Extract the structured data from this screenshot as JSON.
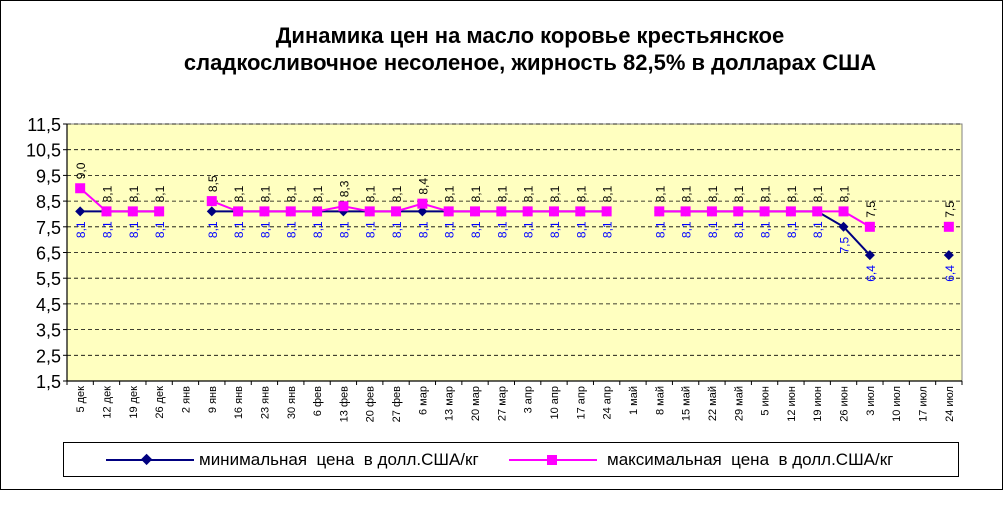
{
  "chart_data": {
    "type": "line",
    "title": [
      "Динамика цен на масло коровье крестьянское",
      "сладкосливочное несоленое, жирность 82,5%  в долларах США"
    ],
    "categories": [
      "5 дек",
      "12 дек",
      "19 дек",
      "26 дек",
      "2 янв",
      "9 янв",
      "16 янв",
      "23 янв",
      "30 янв",
      "6 фев",
      "13 фев",
      "20 фев",
      "27 фев",
      "6 мар",
      "13 мар",
      "20 мар",
      "27 мар",
      "3 апр",
      "10 апр",
      "17 апр",
      "24 апр",
      "1 май",
      "8 май",
      "15 май",
      "22 май",
      "29 май",
      "5 июн",
      "12 июн",
      "19 июн",
      "26 июн",
      "3 июл",
      "10 июл",
      "17 июл",
      "24 июл"
    ],
    "yticks": [
      "1,5",
      "2,5",
      "3,5",
      "4,5",
      "5,5",
      "6,5",
      "7,5",
      "8,5",
      "9,5",
      "10,5",
      "11,5"
    ],
    "ylim": [
      1.5,
      11.5
    ],
    "grid": "horizontal dashed",
    "legend_position": "bottom",
    "plot_background": "#ffffc0",
    "series": [
      {
        "name": "минимальная  цена  в долл.США/кг",
        "color": "#000080",
        "marker": "diamond",
        "values": [
          8.1,
          8.1,
          8.1,
          8.1,
          null,
          8.1,
          8.1,
          8.1,
          8.1,
          8.1,
          8.1,
          8.1,
          8.1,
          8.1,
          8.1,
          8.1,
          8.1,
          8.1,
          8.1,
          8.1,
          8.1,
          null,
          8.1,
          8.1,
          8.1,
          8.1,
          8.1,
          8.1,
          8.1,
          7.5,
          6.4,
          null,
          null,
          6.4
        ],
        "labels": [
          "8,1",
          "8,1",
          "8,1",
          "8,1",
          null,
          "8,1",
          "8,1",
          "8,1",
          "8,1",
          "8,1",
          "8,1",
          "8,1",
          "8,1",
          "8,1",
          "8,1",
          "8,1",
          "8,1",
          "8,1",
          "8,1",
          "8,1",
          "8,1",
          null,
          "8,1",
          "8,1",
          "8,1",
          "8,1",
          "8,1",
          "8,1",
          "8,1",
          "7,5",
          "6,4",
          null,
          null,
          "6,4"
        ],
        "label_color": "#0000ff"
      },
      {
        "name": "максимальная  цена  в долл.США/кг",
        "color": "#ff00ff",
        "marker": "square",
        "values": [
          9.0,
          8.1,
          8.1,
          8.1,
          null,
          8.5,
          8.1,
          8.1,
          8.1,
          8.1,
          8.3,
          8.1,
          8.1,
          8.4,
          8.1,
          8.1,
          8.1,
          8.1,
          8.1,
          8.1,
          8.1,
          null,
          8.1,
          8.1,
          8.1,
          8.1,
          8.1,
          8.1,
          8.1,
          8.1,
          7.5,
          null,
          null,
          7.5
        ],
        "labels": [
          "9,0",
          "8,1",
          "8,1",
          "8,1",
          null,
          "8,5",
          "8,1",
          "8,1",
          "8,1",
          "8,1",
          "8,3",
          "8,1",
          "8,1",
          "8,4",
          "8,1",
          "8,1",
          "8,1",
          "8,1",
          "8,1",
          "8,1",
          "8,1",
          null,
          "8,1",
          "8,1",
          "8,1",
          "8,1",
          "8,1",
          "8,1",
          "8,1",
          "8,1",
          "7,5",
          null,
          null,
          "7,5"
        ],
        "label_color": "#000000"
      }
    ]
  }
}
